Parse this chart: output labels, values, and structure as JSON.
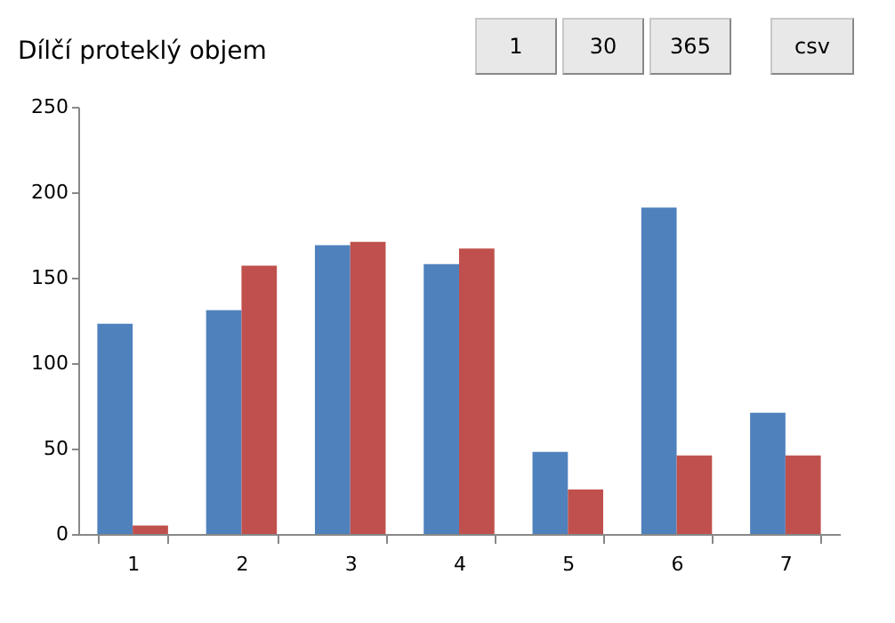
{
  "chart_data": {
    "type": "bar",
    "title": "Dílčí proteklý objem",
    "categories": [
      "1",
      "2",
      "3",
      "4",
      "5",
      "6",
      "7"
    ],
    "series": [
      {
        "color": "#4f81bd",
        "values": [
          123,
          131,
          169,
          158,
          48,
          191,
          71
        ]
      },
      {
        "color": "#c0504d",
        "values": [
          5,
          157,
          171,
          167,
          26,
          46,
          46
        ]
      }
    ],
    "ylim": [
      0,
      250
    ],
    "yticks": [
      0,
      50,
      100,
      150,
      200,
      250
    ],
    "grid": false,
    "legend": false,
    "annotations": [
      "1",
      "30",
      "365",
      "csv"
    ]
  }
}
